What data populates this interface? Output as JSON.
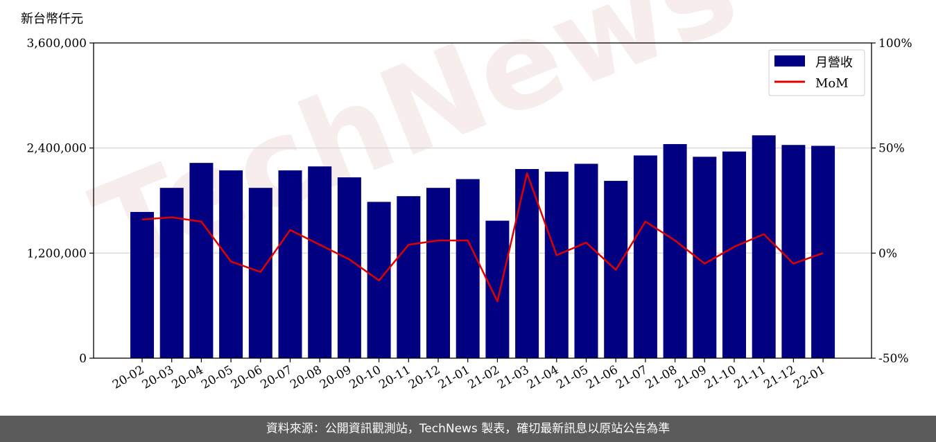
{
  "chart_data": {
    "type": "bar",
    "unit_label": "新台幣仟元",
    "categories": [
      "20-02",
      "20-03",
      "20-04",
      "20-05",
      "20-06",
      "20-07",
      "20-08",
      "20-09",
      "20-10",
      "20-11",
      "20-12",
      "21-01",
      "21-02",
      "21-03",
      "21-04",
      "21-05",
      "21-06",
      "21-07",
      "21-08",
      "21-09",
      "21-10",
      "21-11",
      "21-12",
      "22-01"
    ],
    "series": [
      {
        "name": "月營收",
        "axis": "left",
        "kind": "bar",
        "color": "#000080",
        "values": [
          1670000,
          1945000,
          2230000,
          2145000,
          1945000,
          2145000,
          2190000,
          2065000,
          1785000,
          1850000,
          1945000,
          2045000,
          1570000,
          2160000,
          2130000,
          2220000,
          2025000,
          2315000,
          2445000,
          2300000,
          2360000,
          2545000,
          2435000,
          2425000
        ]
      },
      {
        "name": "MoM",
        "axis": "right",
        "kind": "line",
        "color": "#e00000",
        "values": [
          16,
          17,
          15,
          -4,
          -9,
          11,
          4,
          -3,
          -13,
          4,
          6,
          6,
          -23,
          38,
          -1,
          5,
          -8,
          15,
          6,
          -5,
          3,
          9,
          -5,
          0
        ]
      }
    ],
    "y_left": {
      "min": 0,
      "max": 3600000,
      "ticks": [
        "0",
        "1,200,000",
        "2,400,000",
        "3,600,000"
      ]
    },
    "y_right": {
      "min": -50,
      "max": 100,
      "ticks": [
        "-50%",
        "0%",
        "50%",
        "100%"
      ]
    },
    "grid": "horizontal",
    "legend_position": "top-right"
  },
  "watermark": "TechNews",
  "footer_text": "資料來源：公開資訊觀測站，TechNews 製表，確切最新訊息以原站公告為準"
}
